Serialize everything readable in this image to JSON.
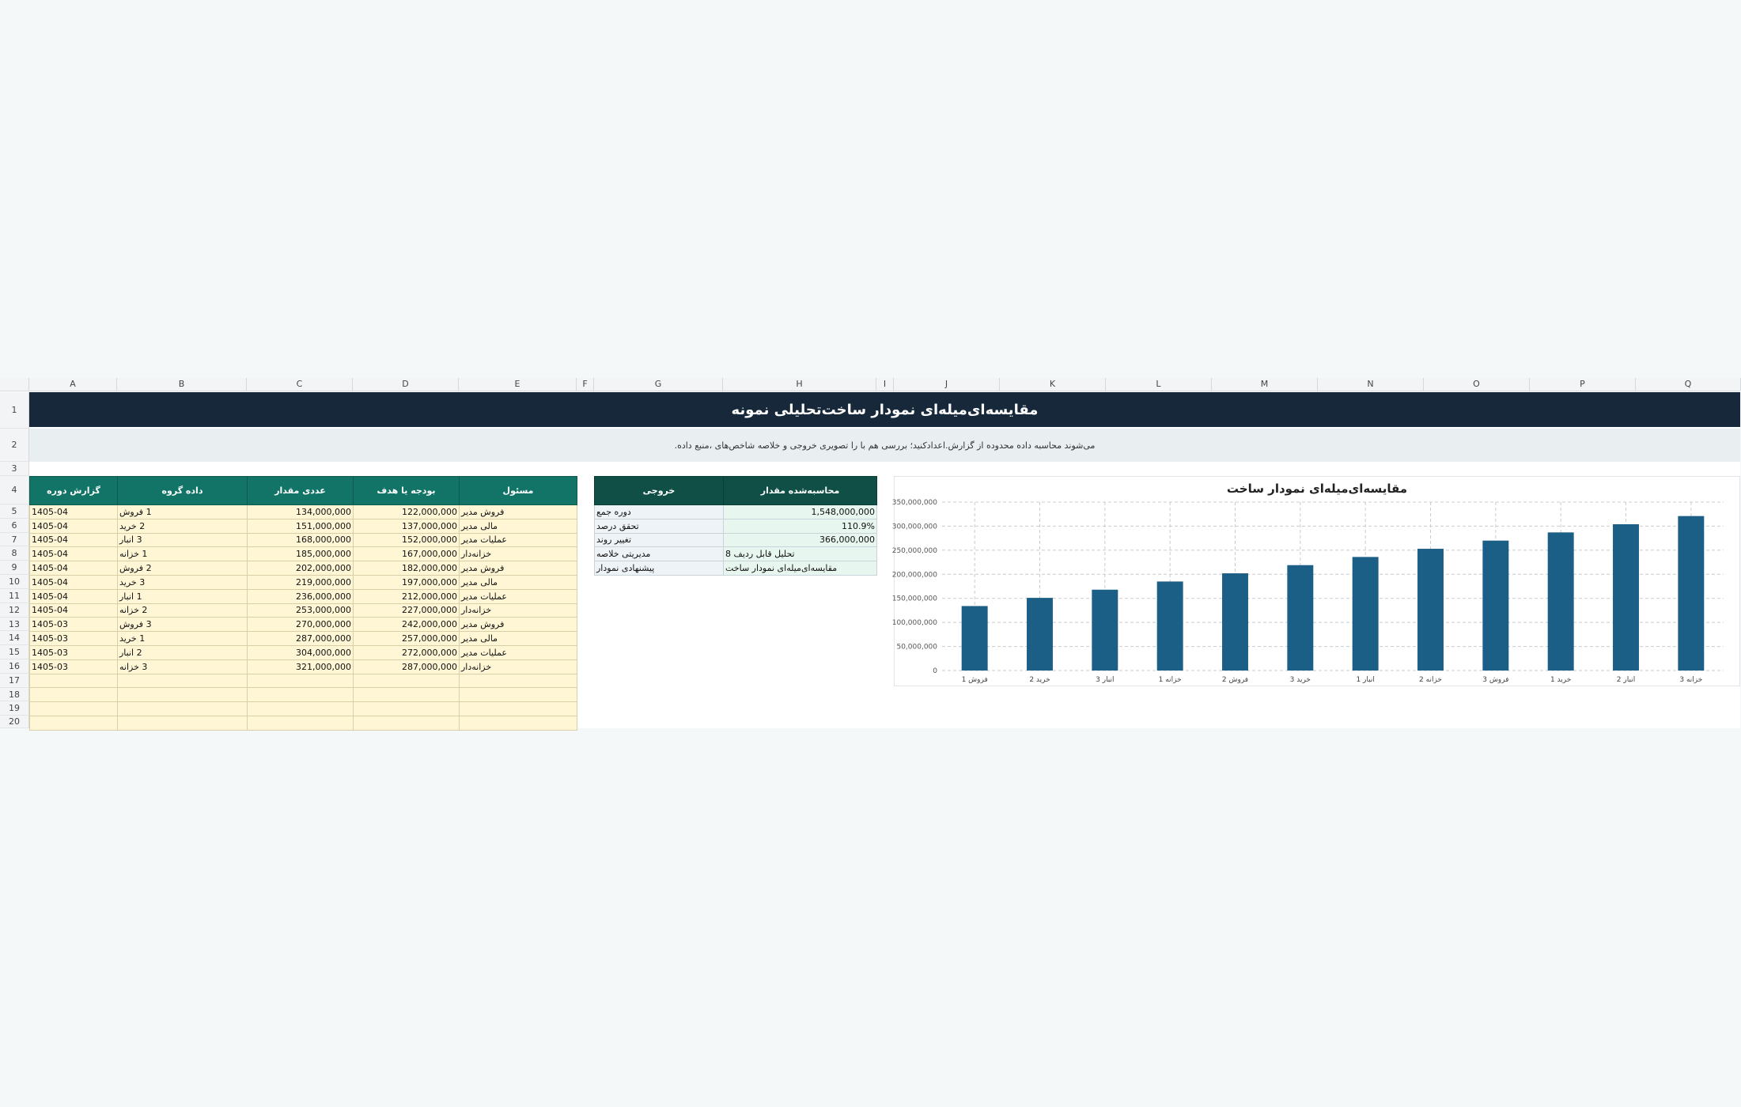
{
  "sheet": {
    "columns": [
      "A",
      "B",
      "C",
      "D",
      "E",
      "F",
      "G",
      "H",
      "I",
      "J",
      "K",
      "L",
      "M",
      "N",
      "O",
      "P",
      "Q"
    ],
    "rows": [
      "1",
      "2",
      "3",
      "4",
      "5",
      "6",
      "7",
      "8",
      "9",
      "10",
      "11",
      "12",
      "13",
      "14",
      "15",
      "16",
      "17",
      "18",
      "19",
      "20"
    ],
    "title": "مقایسه‌ای‌میله‌ای نمودار ساخت‌تحلیلی نمونه",
    "subtitle": ".می‌شوند محاسبه داده محدوده از گزارش.اعدادکنید؛ بررسی هم با را تصویری خروجی و خلاصه شاخص‌های ،منبع داده"
  },
  "data_table": {
    "headers": [
      "گزارش دوره",
      "داده گروه",
      "عددی مقدار",
      "بودجه یا هدف",
      "مسئول"
    ],
    "rows": [
      [
        "1405-04",
        "1 فروش",
        "134,000,000",
        "122,000,000",
        "فروش مدیر"
      ],
      [
        "1405-04",
        "2 خرید",
        "151,000,000",
        "137,000,000",
        "مالی مدیر"
      ],
      [
        "1405-04",
        "3 انبار",
        "168,000,000",
        "152,000,000",
        "عملیات مدیر"
      ],
      [
        "1405-04",
        "1 خزانه",
        "185,000,000",
        "167,000,000",
        "خزانه‌دار"
      ],
      [
        "1405-04",
        "2 فروش",
        "202,000,000",
        "182,000,000",
        "فروش مدیر"
      ],
      [
        "1405-04",
        "3 خرید",
        "219,000,000",
        "197,000,000",
        "مالی مدیر"
      ],
      [
        "1405-04",
        "1 انبار",
        "236,000,000",
        "212,000,000",
        "عملیات مدیر"
      ],
      [
        "1405-04",
        "2 خزانه",
        "253,000,000",
        "227,000,000",
        "خزانه‌دار"
      ],
      [
        "1405-03",
        "3 فروش",
        "270,000,000",
        "242,000,000",
        "فروش مدیر"
      ],
      [
        "1405-03",
        "1 خرید",
        "287,000,000",
        "257,000,000",
        "مالی مدیر"
      ],
      [
        "1405-03",
        "2 انبار",
        "304,000,000",
        "272,000,000",
        "عملیات مدیر"
      ],
      [
        "1405-03",
        "3 خزانه",
        "321,000,000",
        "287,000,000",
        "خزانه‌دار"
      ],
      [
        "",
        "",
        "",
        "",
        ""
      ],
      [
        "",
        "",
        "",
        "",
        ""
      ],
      [
        "",
        "",
        "",
        "",
        ""
      ],
      [
        "",
        "",
        "",
        "",
        ""
      ]
    ]
  },
  "output_table": {
    "headers": [
      "خروجی",
      "محاسبه‌شده مقدار"
    ],
    "rows": [
      [
        "دوره جمع",
        "1,548,000,000"
      ],
      [
        "تحقق درصد",
        "110.9%"
      ],
      [
        "تغییر روند",
        "366,000,000"
      ],
      [
        "مدیریتی خلاصه",
        "تحلیل قابل ردیف 8"
      ],
      [
        "پیشنهادی نمودار",
        "مقایسه‌ای‌میله‌ای نمودار ساخت"
      ]
    ]
  },
  "colors": {
    "title_bar": "#16283a",
    "data_header": "#127466",
    "output_header": "#0f4f45",
    "data_cell": "#fff6d5",
    "bar": "#1b5e86"
  },
  "chart_data": {
    "type": "bar",
    "title": "مقایسه‌ای‌میله‌ای نمودار ساخت",
    "categories": [
      "فروش 1",
      "خرید 2",
      "انبار 3",
      "خزانه 1",
      "فروش 2",
      "خرید 3",
      "انبار 1",
      "خزانه 2",
      "فروش 3",
      "خرید 1",
      "انبار 2",
      "خزانه 3"
    ],
    "values": [
      134000000,
      151000000,
      168000000,
      185000000,
      202000000,
      219000000,
      236000000,
      253000000,
      270000000,
      287000000,
      304000000,
      321000000
    ],
    "ylim": [
      0,
      350000000
    ],
    "yticks": [
      "0",
      "50,000,000",
      "100,000,000",
      "150,000,000",
      "200,000,000",
      "250,000,000",
      "300,000,000",
      "350,000,000"
    ],
    "grid": true,
    "legend": "none"
  }
}
